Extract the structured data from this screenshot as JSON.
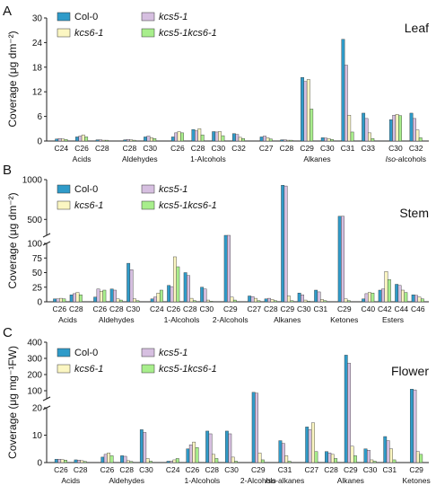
{
  "colors": {
    "col0": "#2f9bc9",
    "kcs5": "#d6bfe0",
    "kcs6": "#fbf6c2",
    "double": "#a8ee8c",
    "axis": "#222222"
  },
  "legend": [
    "Col-0",
    "kcs5-1",
    "kcs6-1",
    "kcs5-1kcs6-1"
  ],
  "chart_data": [
    {
      "panel": "A",
      "tissue": "Leaf",
      "type": "bar",
      "ylabel": "Coverage (μg dm⁻²)",
      "ylim": [
        0,
        30
      ],
      "yticks": [
        0,
        6,
        12,
        18,
        24,
        30
      ],
      "series_names": [
        "Col-0",
        "kcs5-1",
        "kcs6-1",
        "kcs5-1kcs6-1"
      ],
      "groups": [
        {
          "label": "Acids",
          "categories": [
            {
              "x": "C24",
              "values": [
                0.5,
                0.6,
                0.5,
                0.4
              ]
            },
            {
              "x": "C26",
              "values": [
                1.0,
                1.2,
                1.5,
                1.0
              ]
            },
            {
              "x": "C28",
              "values": [
                0.3,
                0.3,
                0.2,
                0.2
              ]
            }
          ]
        },
        {
          "label": "Aldehydes",
          "categories": [
            {
              "x": "C28",
              "values": [
                0.3,
                0.4,
                0.3,
                0.2
              ]
            },
            {
              "x": "C30",
              "values": [
                1.0,
                1.2,
                0.8,
                0.6
              ]
            }
          ]
        },
        {
          "label": "1-Alcohols",
          "categories": [
            {
              "x": "C26",
              "values": [
                1.0,
                2.0,
                2.3,
                2.0
              ]
            },
            {
              "x": "C28",
              "values": [
                2.8,
                2.5,
                3.0,
                1.5
              ]
            },
            {
              "x": "C30",
              "values": [
                2.3,
                2.2,
                2.3,
                1.3
              ]
            },
            {
              "x": "C32",
              "values": [
                1.8,
                1.6,
                0.9,
                0.6
              ]
            }
          ]
        },
        {
          "label": "Alkanes",
          "categories": [
            {
              "x": "C27",
              "values": [
                1.0,
                1.2,
                0.8,
                0.5
              ]
            },
            {
              "x": "C28",
              "values": [
                0.3,
                0.3,
                0.2,
                0.2
              ]
            },
            {
              "x": "C29",
              "values": [
                15.5,
                14.5,
                15.0,
                7.8
              ]
            },
            {
              "x": "C30",
              "values": [
                0.8,
                0.7,
                0.6,
                0.4
              ]
            },
            {
              "x": "C31",
              "values": [
                24.8,
                18.5,
                6.3,
                2.2
              ]
            },
            {
              "x": "C33",
              "values": [
                6.8,
                5.5,
                2.0,
                0.6
              ]
            }
          ]
        },
        {
          "label": "Iso-alcohols",
          "categories": [
            {
              "x": "C30",
              "values": [
                5.2,
                6.3,
                6.5,
                6.2
              ]
            },
            {
              "x": "C32",
              "values": [
                6.8,
                5.5,
                2.7,
                0.8
              ]
            }
          ]
        }
      ]
    },
    {
      "panel": "B",
      "tissue": "Stem",
      "type": "bar",
      "ylabel": "Coverage (μg dm⁻²)",
      "ylim_low": [
        0,
        100
      ],
      "ylim_high": [
        300,
        1000
      ],
      "yticks_low": [
        0,
        25,
        50,
        75,
        100
      ],
      "yticks_high": [
        500,
        1000
      ],
      "series_names": [
        "Col-0",
        "kcs5-1",
        "kcs6-1",
        "kcs5-1kcs6-1"
      ],
      "groups": [
        {
          "label": "Acids",
          "categories": [
            {
              "x": "C26",
              "values": [
                5,
                5,
                6,
                5
              ]
            },
            {
              "x": "C28",
              "values": [
                12,
                14,
                16,
                12
              ]
            }
          ]
        },
        {
          "label": "Aldehydes",
          "categories": [
            {
              "x": "C26",
              "values": [
                8,
                22,
                18,
                20
              ]
            },
            {
              "x": "C28",
              "values": [
                22,
                20,
                5,
                3
              ]
            },
            {
              "x": "C30",
              "values": [
                66,
                55,
                5,
                2
              ]
            }
          ]
        },
        {
          "label": "1-Alcohols",
          "categories": [
            {
              "x": "C24",
              "values": [
                5,
                8,
                15,
                20
              ]
            },
            {
              "x": "C26",
              "values": [
                28,
                26,
                77,
                60
              ]
            },
            {
              "x": "C28",
              "values": [
                50,
                45,
                6,
                2
              ]
            },
            {
              "x": "C30",
              "values": [
                25,
                22,
                3,
                1
              ]
            }
          ]
        },
        {
          "label": "2-Alcohols",
          "categories": [
            {
              "x": "C29",
              "values": [
                200,
                200,
                8,
                3
              ]
            }
          ]
        },
        {
          "label": "Alkanes",
          "categories": [
            {
              "x": "C27",
              "values": [
                10,
                9,
                6,
                2
              ]
            },
            {
              "x": "C28",
              "values": [
                5,
                6,
                4,
                2
              ]
            },
            {
              "x": "C29",
              "values": [
                930,
                920,
                10,
                2
              ]
            },
            {
              "x": "C30",
              "values": [
                15,
                12,
                3,
                1
              ]
            },
            {
              "x": "C31",
              "values": [
                20,
                17,
                4,
                2
              ]
            }
          ]
        },
        {
          "label": "Ketones",
          "categories": [
            {
              "x": "C29",
              "values": [
                540,
                540,
                5,
                2
              ]
            }
          ]
        },
        {
          "label": "Esters",
          "categories": [
            {
              "x": "C40",
              "values": [
                5,
                14,
                16,
                15
              ]
            },
            {
              "x": "C42",
              "values": [
                20,
                22,
                52,
                38
              ]
            },
            {
              "x": "C44",
              "values": [
                30,
                28,
                20,
                16
              ]
            },
            {
              "x": "C46",
              "values": [
                12,
                11,
                8,
                5
              ]
            }
          ]
        }
      ]
    },
    {
      "panel": "C",
      "tissue": "Flower",
      "type": "bar",
      "ylabel": "Coverage (μg mg⁻¹FW)",
      "ylim_low": [
        0,
        20
      ],
      "ylim_high": [
        50,
        400
      ],
      "yticks_low": [
        0,
        10,
        20
      ],
      "yticks_high": [
        100,
        200,
        300,
        400
      ],
      "series_names": [
        "Col-0",
        "kcs5-1",
        "kcs6-1",
        "kcs5-1kcs6-1"
      ],
      "groups": [
        {
          "label": "Acids",
          "categories": [
            {
              "x": "C26",
              "values": [
                1.2,
                1.2,
                1.1,
                0.9
              ]
            },
            {
              "x": "C28",
              "values": [
                1.0,
                0.9,
                0.7,
                0.4
              ]
            }
          ]
        },
        {
          "label": "Aldehydes",
          "categories": [
            {
              "x": "C26",
              "values": [
                2.0,
                3.0,
                3.5,
                2.5
              ]
            },
            {
              "x": "C28",
              "values": [
                2.5,
                2.3,
                0.7,
                0.4
              ]
            },
            {
              "x": "C30",
              "values": [
                12.0,
                11.0,
                1.5,
                0.5
              ]
            }
          ]
        },
        {
          "label": "1-Alcohols",
          "categories": [
            {
              "x": "C24",
              "values": [
                0.5,
                0.5,
                1.0,
                1.5
              ]
            },
            {
              "x": "C26",
              "values": [
                5.0,
                6.5,
                7.5,
                5.5
              ]
            },
            {
              "x": "C28",
              "values": [
                11.5,
                10.5,
                3.0,
                1.5
              ]
            },
            {
              "x": "C30",
              "values": [
                11.5,
                10.5,
                2.0,
                0.5
              ]
            }
          ]
        },
        {
          "label": "2-Alcohols",
          "categories": [
            {
              "x": "C29",
              "values": [
                90,
                85,
                3.5,
                1.0
              ]
            }
          ]
        },
        {
          "label": "Iso-alkanes",
          "categories": [
            {
              "x": "C31",
              "values": [
                8.0,
                7.0,
                2.5,
                0.5
              ]
            }
          ]
        },
        {
          "label": "Alkanes",
          "categories": [
            {
              "x": "C27",
              "values": [
                13.0,
                12.0,
                14.5,
                4.0
              ]
            },
            {
              "x": "C28",
              "values": [
                4.0,
                3.5,
                3.0,
                1.5
              ]
            },
            {
              "x": "C29",
              "values": [
                320,
                270,
                6.0,
                2.5
              ]
            },
            {
              "x": "C30",
              "values": [
                5.0,
                4.5,
                1.0,
                0.5
              ]
            },
            {
              "x": "C31",
              "values": [
                9.5,
                8.0,
                5.0,
                1.0
              ]
            }
          ]
        },
        {
          "label": "Ketones",
          "categories": [
            {
              "x": "C29",
              "values": [
                110,
                105,
                4.0,
                3.0
              ]
            }
          ]
        }
      ]
    }
  ]
}
